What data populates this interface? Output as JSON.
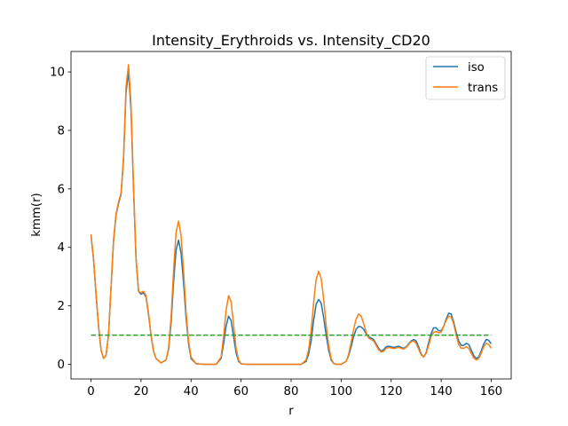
{
  "chart_data": {
    "type": "line",
    "title": "Intensity_Erythroids vs. Intensity_CD20",
    "xlabel": "r",
    "ylabel": "kmm(r)",
    "xlim": [
      -8,
      168
    ],
    "ylim": [
      -0.5,
      10.7
    ],
    "xticks": [
      0,
      20,
      40,
      60,
      80,
      100,
      120,
      140,
      160
    ],
    "yticks": [
      0,
      2,
      4,
      6,
      8,
      10
    ],
    "grid": false,
    "legend_position": "top-right",
    "reference_line": {
      "y": 1.0,
      "style": "dashed",
      "color": "#2ca02c"
    },
    "series": [
      {
        "name": "iso",
        "color": "#1f77b4",
        "points": [
          [
            0,
            4.4
          ],
          [
            1,
            3.6
          ],
          [
            2,
            2.4
          ],
          [
            3,
            1.3
          ],
          [
            4,
            0.5
          ],
          [
            5,
            0.2
          ],
          [
            6,
            0.3
          ],
          [
            7,
            1.0
          ],
          [
            8,
            2.6
          ],
          [
            9,
            4.2
          ],
          [
            10,
            5.1
          ],
          [
            11,
            5.5
          ],
          [
            12,
            5.8
          ],
          [
            13,
            7.0
          ],
          [
            14,
            9.3
          ],
          [
            15,
            10.0
          ],
          [
            16,
            8.7
          ],
          [
            17,
            6.0
          ],
          [
            18,
            3.6
          ],
          [
            19,
            2.5
          ],
          [
            20,
            2.4
          ],
          [
            21,
            2.45
          ],
          [
            22,
            2.3
          ],
          [
            23,
            1.7
          ],
          [
            24,
            1.0
          ],
          [
            25,
            0.45
          ],
          [
            26,
            0.2
          ],
          [
            28,
            0.05
          ],
          [
            30,
            0.15
          ],
          [
            31,
            0.5
          ],
          [
            32,
            1.4
          ],
          [
            33,
            2.8
          ],
          [
            34,
            3.9
          ],
          [
            35,
            4.25
          ],
          [
            36,
            3.8
          ],
          [
            37,
            2.8
          ],
          [
            38,
            1.6
          ],
          [
            39,
            0.7
          ],
          [
            40,
            0.2
          ],
          [
            42,
            0.02
          ],
          [
            45,
            0.0
          ],
          [
            50,
            0.0
          ],
          [
            52,
            0.2
          ],
          [
            53,
            0.7
          ],
          [
            54,
            1.3
          ],
          [
            55,
            1.65
          ],
          [
            56,
            1.5
          ],
          [
            57,
            0.95
          ],
          [
            58,
            0.4
          ],
          [
            59,
            0.1
          ],
          [
            60,
            0.02
          ],
          [
            62,
            0.0
          ],
          [
            70,
            0.0
          ],
          [
            80,
            0.0
          ],
          [
            84,
            0.0
          ],
          [
            86,
            0.1
          ],
          [
            87,
            0.35
          ],
          [
            88,
            0.8
          ],
          [
            89,
            1.5
          ],
          [
            90,
            2.05
          ],
          [
            91,
            2.22
          ],
          [
            92,
            2.1
          ],
          [
            93,
            1.6
          ],
          [
            94,
            1.0
          ],
          [
            95,
            0.5
          ],
          [
            96,
            0.15
          ],
          [
            97,
            0.03
          ],
          [
            98,
            0.0
          ],
          [
            100,
            0.0
          ],
          [
            102,
            0.1
          ],
          [
            103,
            0.3
          ],
          [
            104,
            0.6
          ],
          [
            105,
            0.95
          ],
          [
            106,
            1.2
          ],
          [
            107,
            1.3
          ],
          [
            108,
            1.28
          ],
          [
            109,
            1.2
          ],
          [
            110,
            1.05
          ],
          [
            111,
            0.95
          ],
          [
            112,
            0.9
          ],
          [
            113,
            0.85
          ],
          [
            114,
            0.7
          ],
          [
            115,
            0.55
          ],
          [
            116,
            0.45
          ],
          [
            117,
            0.5
          ],
          [
            118,
            0.6
          ],
          [
            119,
            0.62
          ],
          [
            120,
            0.6
          ],
          [
            121,
            0.58
          ],
          [
            122,
            0.6
          ],
          [
            123,
            0.62
          ],
          [
            124,
            0.58
          ],
          [
            125,
            0.55
          ],
          [
            126,
            0.6
          ],
          [
            127,
            0.7
          ],
          [
            128,
            0.8
          ],
          [
            129,
            0.85
          ],
          [
            130,
            0.8
          ],
          [
            131,
            0.6
          ],
          [
            132,
            0.35
          ],
          [
            133,
            0.25
          ],
          [
            134,
            0.4
          ],
          [
            135,
            0.75
          ],
          [
            136,
            1.05
          ],
          [
            137,
            1.25
          ],
          [
            138,
            1.25
          ],
          [
            139,
            1.15
          ],
          [
            140,
            1.15
          ],
          [
            141,
            1.3
          ],
          [
            142,
            1.55
          ],
          [
            143,
            1.75
          ],
          [
            144,
            1.72
          ],
          [
            145,
            1.45
          ],
          [
            146,
            1.1
          ],
          [
            147,
            0.8
          ],
          [
            148,
            0.65
          ],
          [
            149,
            0.65
          ],
          [
            150,
            0.72
          ],
          [
            151,
            0.68
          ],
          [
            152,
            0.5
          ],
          [
            153,
            0.3
          ],
          [
            154,
            0.2
          ],
          [
            155,
            0.25
          ],
          [
            156,
            0.45
          ],
          [
            157,
            0.7
          ],
          [
            158,
            0.85
          ],
          [
            159,
            0.82
          ],
          [
            160,
            0.7
          ]
        ]
      },
      {
        "name": "trans",
        "color": "#ff7f0e",
        "points": [
          [
            0,
            4.45
          ],
          [
            1,
            3.65
          ],
          [
            2,
            2.45
          ],
          [
            3,
            1.35
          ],
          [
            4,
            0.5
          ],
          [
            5,
            0.2
          ],
          [
            6,
            0.3
          ],
          [
            7,
            1.0
          ],
          [
            8,
            2.65
          ],
          [
            9,
            4.25
          ],
          [
            10,
            5.15
          ],
          [
            11,
            5.55
          ],
          [
            12,
            5.85
          ],
          [
            13,
            7.1
          ],
          [
            14,
            9.5
          ],
          [
            15,
            10.25
          ],
          [
            16,
            8.9
          ],
          [
            17,
            6.1
          ],
          [
            18,
            3.65
          ],
          [
            19,
            2.5
          ],
          [
            20,
            2.45
          ],
          [
            21,
            2.5
          ],
          [
            22,
            2.35
          ],
          [
            23,
            1.75
          ],
          [
            24,
            1.0
          ],
          [
            25,
            0.45
          ],
          [
            26,
            0.2
          ],
          [
            28,
            0.05
          ],
          [
            30,
            0.15
          ],
          [
            31,
            0.55
          ],
          [
            32,
            1.6
          ],
          [
            33,
            3.2
          ],
          [
            34,
            4.5
          ],
          [
            35,
            4.9
          ],
          [
            36,
            4.4
          ],
          [
            37,
            3.2
          ],
          [
            38,
            1.8
          ],
          [
            39,
            0.8
          ],
          [
            40,
            0.25
          ],
          [
            42,
            0.02
          ],
          [
            45,
            0.0
          ],
          [
            50,
            0.0
          ],
          [
            52,
            0.25
          ],
          [
            53,
            0.95
          ],
          [
            54,
            1.85
          ],
          [
            55,
            2.35
          ],
          [
            56,
            2.15
          ],
          [
            57,
            1.35
          ],
          [
            58,
            0.55
          ],
          [
            59,
            0.15
          ],
          [
            60,
            0.02
          ],
          [
            62,
            0.0
          ],
          [
            70,
            0.0
          ],
          [
            80,
            0.0
          ],
          [
            84,
            0.0
          ],
          [
            86,
            0.15
          ],
          [
            87,
            0.5
          ],
          [
            88,
            1.15
          ],
          [
            89,
            2.1
          ],
          [
            90,
            2.9
          ],
          [
            91,
            3.18
          ],
          [
            92,
            2.95
          ],
          [
            93,
            2.25
          ],
          [
            94,
            1.35
          ],
          [
            95,
            0.65
          ],
          [
            96,
            0.2
          ],
          [
            97,
            0.04
          ],
          [
            98,
            0.0
          ],
          [
            100,
            0.0
          ],
          [
            102,
            0.1
          ],
          [
            103,
            0.35
          ],
          [
            104,
            0.75
          ],
          [
            105,
            1.2
          ],
          [
            106,
            1.55
          ],
          [
            107,
            1.72
          ],
          [
            108,
            1.65
          ],
          [
            109,
            1.4
          ],
          [
            110,
            1.1
          ],
          [
            111,
            0.9
          ],
          [
            112,
            0.85
          ],
          [
            113,
            0.8
          ],
          [
            114,
            0.65
          ],
          [
            115,
            0.5
          ],
          [
            116,
            0.42
          ],
          [
            117,
            0.45
          ],
          [
            118,
            0.55
          ],
          [
            119,
            0.58
          ],
          [
            120,
            0.56
          ],
          [
            121,
            0.54
          ],
          [
            122,
            0.56
          ],
          [
            123,
            0.58
          ],
          [
            124,
            0.55
          ],
          [
            125,
            0.52
          ],
          [
            126,
            0.58
          ],
          [
            127,
            0.68
          ],
          [
            128,
            0.78
          ],
          [
            129,
            0.8
          ],
          [
            130,
            0.72
          ],
          [
            131,
            0.52
          ],
          [
            132,
            0.32
          ],
          [
            133,
            0.25
          ],
          [
            134,
            0.38
          ],
          [
            135,
            0.65
          ],
          [
            136,
            0.95
          ],
          [
            137,
            1.1
          ],
          [
            138,
            1.12
          ],
          [
            139,
            1.08
          ],
          [
            140,
            1.1
          ],
          [
            141,
            1.3
          ],
          [
            142,
            1.5
          ],
          [
            143,
            1.65
          ],
          [
            144,
            1.62
          ],
          [
            145,
            1.38
          ],
          [
            146,
            1.0
          ],
          [
            147,
            0.68
          ],
          [
            148,
            0.55
          ],
          [
            149,
            0.55
          ],
          [
            150,
            0.6
          ],
          [
            151,
            0.55
          ],
          [
            152,
            0.38
          ],
          [
            153,
            0.22
          ],
          [
            154,
            0.15
          ],
          [
            155,
            0.2
          ],
          [
            156,
            0.38
          ],
          [
            157,
            0.6
          ],
          [
            158,
            0.72
          ],
          [
            159,
            0.68
          ],
          [
            160,
            0.55
          ]
        ]
      }
    ]
  }
}
